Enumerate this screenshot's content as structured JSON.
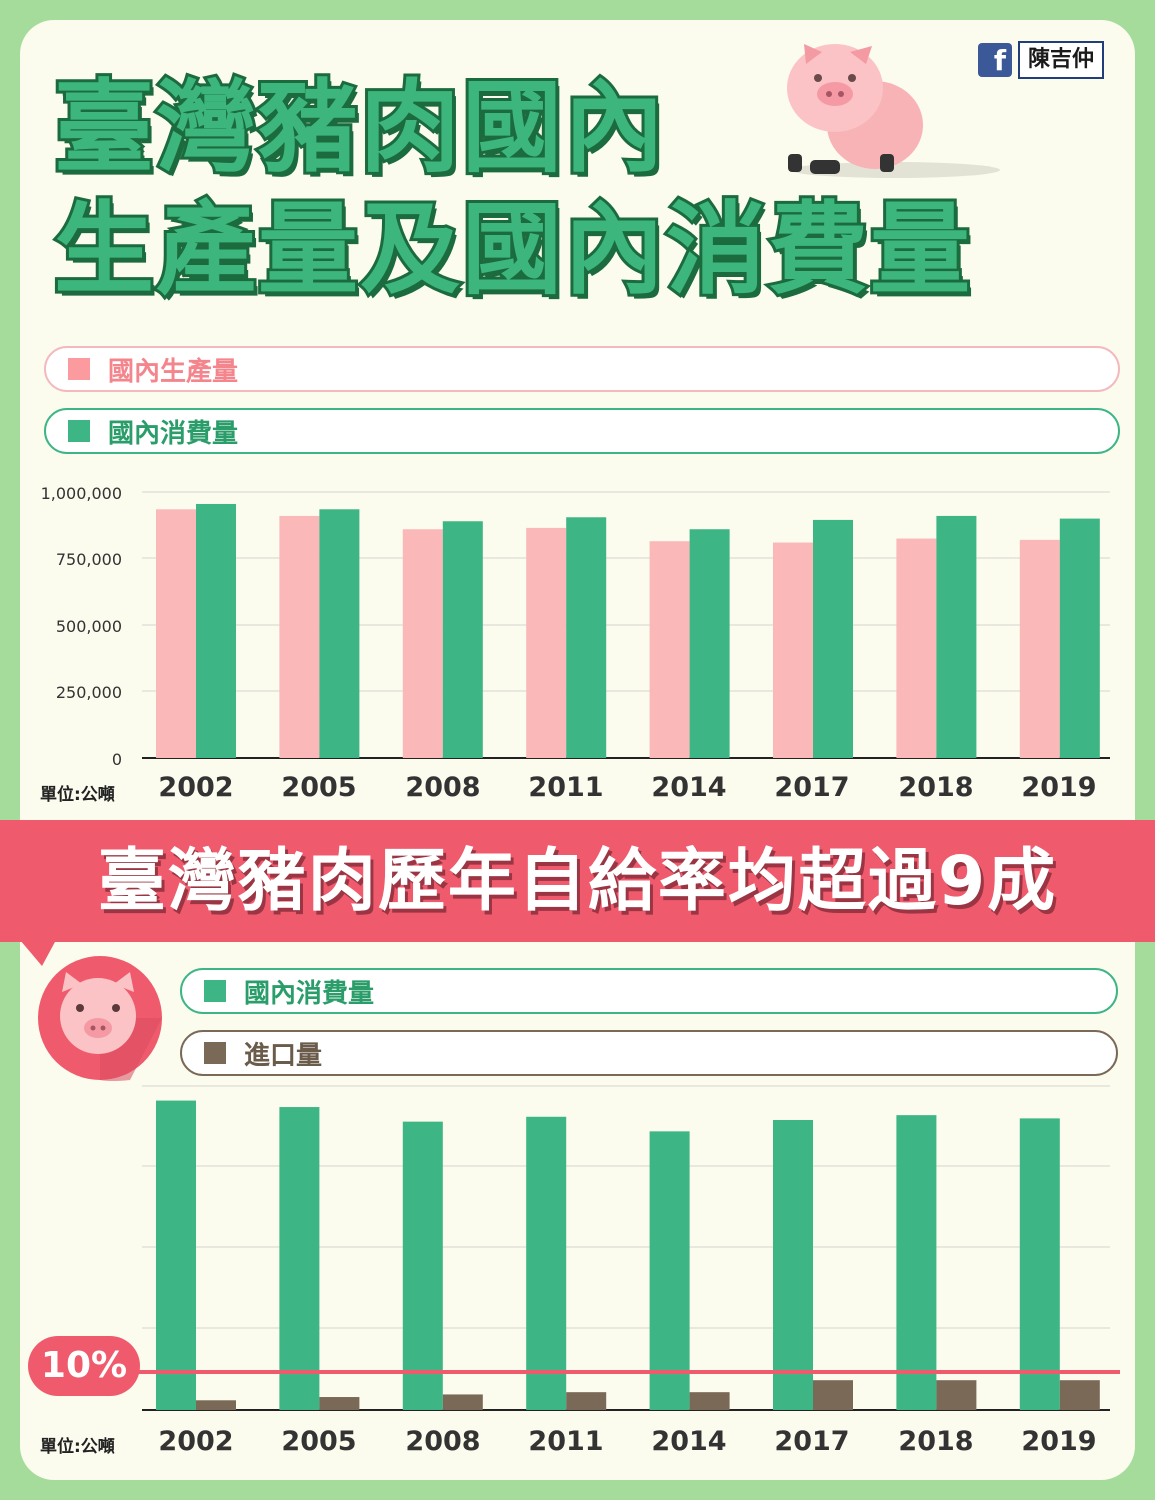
{
  "header": {
    "title_line1": "臺灣豬肉國內",
    "title_line2": "生產量及國內消費量",
    "author": "陳吉仲",
    "fb_icon": "f"
  },
  "colors": {
    "production": "#fbb8b8",
    "consumption": "#3db584",
    "import": "#7a6957",
    "accent": "#ef5b6d",
    "background": "#a5dc9b"
  },
  "banner": {
    "text": "臺灣豬肉歷年自給率均超過9成"
  },
  "threshold": {
    "label": "10%"
  },
  "chart_data": [
    {
      "type": "bar",
      "categories": [
        "2002",
        "2005",
        "2008",
        "2011",
        "2014",
        "2017",
        "2018",
        "2019"
      ],
      "series": [
        {
          "name": "國內生產量",
          "values": [
            935000,
            910000,
            860000,
            865000,
            815000,
            810000,
            825000,
            820000
          ]
        },
        {
          "name": "國內消費量",
          "values": [
            955000,
            935000,
            890000,
            905000,
            860000,
            895000,
            910000,
            900000
          ]
        }
      ],
      "ylim": [
        0,
        1000000
      ],
      "yticks": [
        "0",
        "250,000",
        "500,000",
        "750,000",
        "1,000,000"
      ],
      "unit": "單位:公噸",
      "grid": true
    },
    {
      "type": "bar",
      "categories": [
        "2002",
        "2005",
        "2008",
        "2011",
        "2014",
        "2017",
        "2018",
        "2019"
      ],
      "series": [
        {
          "name": "國內消費量",
          "values": [
            955000,
            935000,
            890000,
            905000,
            860000,
            895000,
            910000,
            900000
          ]
        },
        {
          "name": "進口量",
          "values": [
            30000,
            40000,
            48000,
            55000,
            55000,
            92000,
            92000,
            92000
          ]
        }
      ],
      "ylim": [
        0,
        1000000
      ],
      "threshold_label": "10%",
      "unit": "單位:公噸",
      "grid": true
    }
  ]
}
